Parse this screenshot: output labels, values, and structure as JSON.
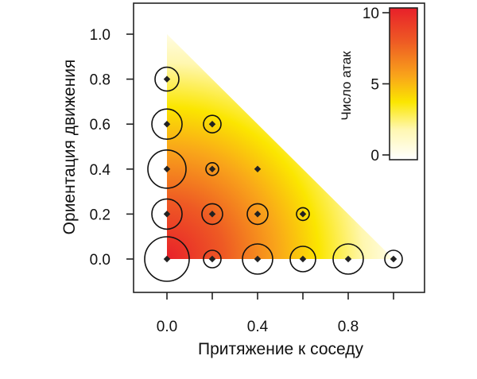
{
  "chart_data": {
    "type": "scatter",
    "title": "",
    "xlabel": "Притяжение к соседу",
    "ylabel": "Ориентация движения",
    "xlim": [
      -0.2,
      1.2
    ],
    "ylim": [
      -0.1,
      1.1
    ],
    "xticks": [
      0.0,
      0.2,
      0.4,
      0.6,
      0.8,
      1.0
    ],
    "xtick_labels": [
      "0.0",
      "",
      "0.4",
      "",
      "0.8",
      ""
    ],
    "yticks": [
      0.0,
      0.2,
      0.4,
      0.6,
      0.8,
      1.0
    ],
    "ytick_labels": [
      "0.0",
      "0.2",
      "0.4",
      "0.6",
      "0.8",
      "1.0"
    ],
    "grid": false,
    "surface": {
      "shape": "triangle x + y <= 1",
      "colorscale": [
        "#ffffff",
        "#fff7b0",
        "#fbe600",
        "#f9a51a",
        "#ee5a24",
        "#e8202a"
      ],
      "max_at": "(0, 0)"
    },
    "points": [
      {
        "x": 0.0,
        "y": 0.0,
        "size": 28
      },
      {
        "x": 0.0,
        "y": 0.2,
        "size": 19
      },
      {
        "x": 0.0,
        "y": 0.4,
        "size": 24
      },
      {
        "x": 0.0,
        "y": 0.6,
        "size": 19
      },
      {
        "x": 0.0,
        "y": 0.8,
        "size": 15
      },
      {
        "x": 0.2,
        "y": 0.0,
        "size": 11
      },
      {
        "x": 0.2,
        "y": 0.2,
        "size": 13
      },
      {
        "x": 0.2,
        "y": 0.4,
        "size": 8
      },
      {
        "x": 0.2,
        "y": 0.6,
        "size": 11
      },
      {
        "x": 0.4,
        "y": 0.0,
        "size": 19
      },
      {
        "x": 0.4,
        "y": 0.2,
        "size": 13
      },
      {
        "x": 0.4,
        "y": 0.4,
        "size": 0
      },
      {
        "x": 0.6,
        "y": 0.0,
        "size": 16
      },
      {
        "x": 0.6,
        "y": 0.2,
        "size": 8
      },
      {
        "x": 0.8,
        "y": 0.0,
        "size": 19
      },
      {
        "x": 1.0,
        "y": 0.0,
        "size": 11
      }
    ],
    "colorbar": {
      "label": "Число атак",
      "range": [
        0,
        10.5
      ],
      "ticks": [
        0,
        5,
        10
      ],
      "tick_labels": [
        "0",
        "5",
        "10"
      ],
      "placement": "top-right"
    }
  }
}
